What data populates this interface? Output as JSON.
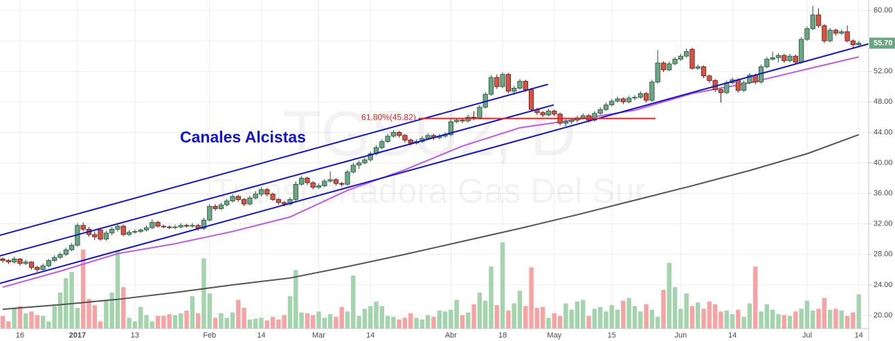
{
  "chart_data": {
    "type": "candlestick",
    "watermark": {
      "symbol": "TGSU2, D",
      "name": "Transportadora Gas Del Sur"
    },
    "annotation": "Canales Alcistas",
    "ylim": [
      16.64,
      61.36
    ],
    "yticks": [
      {
        "value": 20,
        "label": "20.00"
      },
      {
        "value": 24,
        "label": "24.00"
      },
      {
        "value": 28,
        "label": "28.00"
      },
      {
        "value": 32,
        "label": "32.00"
      },
      {
        "value": 36,
        "label": "36.00"
      },
      {
        "value": 40,
        "label": "40.00"
      },
      {
        "value": 44,
        "label": "44.00"
      },
      {
        "value": 48,
        "label": "48.00"
      },
      {
        "value": 52,
        "label": "52.00"
      },
      {
        "value": 56,
        "label": "56.00"
      },
      {
        "value": 60,
        "label": "60.00"
      }
    ],
    "xticks": [
      {
        "value": 3,
        "label": "16"
      },
      {
        "value": 13,
        "label": "2017",
        "bold": true
      },
      {
        "value": 23,
        "label": "13"
      },
      {
        "value": 36,
        "label": "Feb"
      },
      {
        "value": 45,
        "label": "14"
      },
      {
        "value": 55,
        "label": "Mar"
      },
      {
        "value": 64,
        "label": "14"
      },
      {
        "value": 78,
        "label": "Abr"
      },
      {
        "value": 87,
        "label": "18"
      },
      {
        "value": 96,
        "label": "May"
      },
      {
        "value": 106,
        "label": "15"
      },
      {
        "value": 118,
        "label": "Jun"
      },
      {
        "value": 127,
        "label": "14"
      },
      {
        "value": 140,
        "label": "Jul"
      },
      {
        "value": 149,
        "label": "14"
      }
    ],
    "grid": true,
    "colors": {
      "up": "#6ba583",
      "up_border": "#225437",
      "down": "#d75442",
      "down_border": "#5b1a13",
      "volume_up": "#a3d4ae",
      "volume_down": "#f5a3a3",
      "channel": "#1414d4",
      "fib": "#e82020"
    },
    "ohlc": [
      [
        27.4,
        27.6,
        26.9,
        27.2
      ],
      [
        27.2,
        27.4,
        26.7,
        27.0
      ],
      [
        27.0,
        27.7,
        26.8,
        27.4
      ],
      [
        27.4,
        27.5,
        26.5,
        26.8
      ],
      [
        26.8,
        27.3,
        26.6,
        27.0
      ],
      [
        27.0,
        27.1,
        26.0,
        26.3
      ],
      [
        26.3,
        26.5,
        25.7,
        26.0
      ],
      [
        26.0,
        26.8,
        25.9,
        26.5
      ],
      [
        26.5,
        27.4,
        26.3,
        27.2
      ],
      [
        27.2,
        27.9,
        27.0,
        27.6
      ],
      [
        27.6,
        28.3,
        27.4,
        28.0
      ],
      [
        28.0,
        28.9,
        27.8,
        28.6
      ],
      [
        28.6,
        29.5,
        28.4,
        29.2
      ],
      [
        29.2,
        32.1,
        29.0,
        31.8
      ],
      [
        31.8,
        32.2,
        31.0,
        31.3
      ],
      [
        31.3,
        31.6,
        30.3,
        30.6
      ],
      [
        30.6,
        31.0,
        29.9,
        30.3
      ],
      [
        31.2,
        31.5,
        29.8,
        30.0
      ],
      [
        30.0,
        31.1,
        29.8,
        30.8
      ],
      [
        30.8,
        31.6,
        30.5,
        31.3
      ],
      [
        31.3,
        32.0,
        31.0,
        31.7
      ],
      [
        31.7,
        31.9,
        30.4,
        30.6
      ],
      [
        30.6,
        31.2,
        30.4,
        30.9
      ],
      [
        30.9,
        31.3,
        30.7,
        31.0
      ],
      [
        31.0,
        31.4,
        30.8,
        31.2
      ],
      [
        31.2,
        31.8,
        31.0,
        31.5
      ],
      [
        31.5,
        32.6,
        31.3,
        32.2
      ],
      [
        32.2,
        32.4,
        31.5,
        31.7
      ],
      [
        31.7,
        31.9,
        31.4,
        31.6
      ],
      [
        31.6,
        31.8,
        31.3,
        31.5
      ],
      [
        31.5,
        31.9,
        31.3,
        31.6
      ],
      [
        31.6,
        32.1,
        31.4,
        31.8
      ],
      [
        31.8,
        32.0,
        31.5,
        31.7
      ],
      [
        31.7,
        32.1,
        31.5,
        31.8
      ],
      [
        31.8,
        32.0,
        31.1,
        31.4
      ],
      [
        31.4,
        32.8,
        31.2,
        32.5
      ],
      [
        32.5,
        34.6,
        32.3,
        34.3
      ],
      [
        34.3,
        34.6,
        33.7,
        34.0
      ],
      [
        34.0,
        34.8,
        33.8,
        34.5
      ],
      [
        34.5,
        35.3,
        34.3,
        35.0
      ],
      [
        35.0,
        35.9,
        34.8,
        35.6
      ],
      [
        35.6,
        35.8,
        34.9,
        35.2
      ],
      [
        35.2,
        35.4,
        34.3,
        34.6
      ],
      [
        34.6,
        35.7,
        34.4,
        35.4
      ],
      [
        35.4,
        36.3,
        35.2,
        35.9
      ],
      [
        35.9,
        36.8,
        35.6,
        36.5
      ],
      [
        36.5,
        36.7,
        35.6,
        35.9
      ],
      [
        35.9,
        36.1,
        35.0,
        35.2
      ],
      [
        35.2,
        35.4,
        34.5,
        34.8
      ],
      [
        34.8,
        35.0,
        34.3,
        34.6
      ],
      [
        34.6,
        35.5,
        34.4,
        35.2
      ],
      [
        35.2,
        37.6,
        35.0,
        37.2
      ],
      [
        37.2,
        38.3,
        37.0,
        38.0
      ],
      [
        38.0,
        38.2,
        37.1,
        37.4
      ],
      [
        37.4,
        37.6,
        36.5,
        36.8
      ],
      [
        36.8,
        37.3,
        36.6,
        37.0
      ],
      [
        37.0,
        37.9,
        36.8,
        37.6
      ],
      [
        37.6,
        38.9,
        37.4,
        37.8
      ],
      [
        37.8,
        38.0,
        37.0,
        37.3
      ],
      [
        37.3,
        37.5,
        36.9,
        37.2
      ],
      [
        37.2,
        39.1,
        37.0,
        38.8
      ],
      [
        38.8,
        40.0,
        38.6,
        39.7
      ],
      [
        39.7,
        40.3,
        39.2,
        40.0
      ],
      [
        40.0,
        40.7,
        39.8,
        40.4
      ],
      [
        40.4,
        41.5,
        40.2,
        41.2
      ],
      [
        41.2,
        42.3,
        41.0,
        42.0
      ],
      [
        42.0,
        43.1,
        41.8,
        42.8
      ],
      [
        42.8,
        43.8,
        42.6,
        43.5
      ],
      [
        43.5,
        44.3,
        43.3,
        44.0
      ],
      [
        44.0,
        44.2,
        43.3,
        43.6
      ],
      [
        43.6,
        43.8,
        42.7,
        43.0
      ],
      [
        43.0,
        43.2,
        42.3,
        42.6
      ],
      [
        42.6,
        43.1,
        42.4,
        42.8
      ],
      [
        42.8,
        43.5,
        42.6,
        43.2
      ],
      [
        43.2,
        43.9,
        43.0,
        43.6
      ],
      [
        43.6,
        43.8,
        43.0,
        43.3
      ],
      [
        43.3,
        43.8,
        43.1,
        43.5
      ],
      [
        43.5,
        44.0,
        43.3,
        43.7
      ],
      [
        43.7,
        45.7,
        43.5,
        45.4
      ],
      [
        45.4,
        45.9,
        45.2,
        45.6
      ],
      [
        45.6,
        45.8,
        45.2,
        45.5
      ],
      [
        45.5,
        46.3,
        45.3,
        46.0
      ],
      [
        46.0,
        46.8,
        45.6,
        45.9
      ],
      [
        45.9,
        47.6,
        45.7,
        47.3
      ],
      [
        47.3,
        49.3,
        47.1,
        49.0
      ],
      [
        49.0,
        51.5,
        48.8,
        51.2
      ],
      [
        51.2,
        51.6,
        49.7,
        50.0
      ],
      [
        50.0,
        51.9,
        49.8,
        51.6
      ],
      [
        51.6,
        51.8,
        49.1,
        49.4
      ],
      [
        49.4,
        50.1,
        48.9,
        49.8
      ],
      [
        49.8,
        51.0,
        49.6,
        50.7
      ],
      [
        50.7,
        50.9,
        49.3,
        49.6
      ],
      [
        49.6,
        49.8,
        46.7,
        47.0
      ],
      [
        47.0,
        47.2,
        46.3,
        46.6
      ],
      [
        46.6,
        46.8,
        46.0,
        46.3
      ],
      [
        46.3,
        47.1,
        46.1,
        46.8
      ],
      [
        46.8,
        47.0,
        46.1,
        46.4
      ],
      [
        46.4,
        46.6,
        44.9,
        45.2
      ],
      [
        45.2,
        45.7,
        44.8,
        45.4
      ],
      [
        45.4,
        45.9,
        45.1,
        45.6
      ],
      [
        45.6,
        46.2,
        45.3,
        45.9
      ],
      [
        45.9,
        46.5,
        45.7,
        46.2
      ],
      [
        46.2,
        46.4,
        45.3,
        45.6
      ],
      [
        45.6,
        46.8,
        45.4,
        46.5
      ],
      [
        46.5,
        47.3,
        46.3,
        47.0
      ],
      [
        47.0,
        47.9,
        46.8,
        47.6
      ],
      [
        47.6,
        48.4,
        47.4,
        48.1
      ],
      [
        48.1,
        48.7,
        47.9,
        48.4
      ],
      [
        48.4,
        48.6,
        47.7,
        48.0
      ],
      [
        48.0,
        48.8,
        47.8,
        48.5
      ],
      [
        48.5,
        48.9,
        48.2,
        48.6
      ],
      [
        48.6,
        49.4,
        48.4,
        49.1
      ],
      [
        49.1,
        49.3,
        47.9,
        48.2
      ],
      [
        48.2,
        50.9,
        48.0,
        50.6
      ],
      [
        50.6,
        54.8,
        50.4,
        53.1
      ],
      [
        53.1,
        53.3,
        51.9,
        52.2
      ],
      [
        52.2,
        53.3,
        52.0,
        53.0
      ],
      [
        53.0,
        53.9,
        52.8,
        53.6
      ],
      [
        53.6,
        54.3,
        53.4,
        54.0
      ],
      [
        54.0,
        55.0,
        53.8,
        54.6
      ],
      [
        54.9,
        55.1,
        52.2,
        52.4
      ],
      [
        52.4,
        52.9,
        52.2,
        52.6
      ],
      [
        52.6,
        52.8,
        51.1,
        51.4
      ],
      [
        51.4,
        51.6,
        50.5,
        50.8
      ],
      [
        50.8,
        51.0,
        49.3,
        49.6
      ],
      [
        49.6,
        49.8,
        47.9,
        49.2
      ],
      [
        49.2,
        50.8,
        49.0,
        50.5
      ],
      [
        50.5,
        51.2,
        50.3,
        50.9
      ],
      [
        50.9,
        51.1,
        49.2,
        49.5
      ],
      [
        49.5,
        50.8,
        49.3,
        50.5
      ],
      [
        50.5,
        51.8,
        50.3,
        51.5
      ],
      [
        51.5,
        51.7,
        50.3,
        50.6
      ],
      [
        50.6,
        52.9,
        50.4,
        52.6
      ],
      [
        52.6,
        53.9,
        52.4,
        53.6
      ],
      [
        53.6,
        54.6,
        53.4,
        53.8
      ],
      [
        53.8,
        54.4,
        53.2,
        54.1
      ],
      [
        54.1,
        54.3,
        53.1,
        53.4
      ],
      [
        53.4,
        54.3,
        53.2,
        54.0
      ],
      [
        54.0,
        54.2,
        52.9,
        53.2
      ],
      [
        53.2,
        56.5,
        53.0,
        56.2
      ],
      [
        56.2,
        57.9,
        56.0,
        57.6
      ],
      [
        57.6,
        60.6,
        57.4,
        59.4
      ],
      [
        59.4,
        60.3,
        57.7,
        58.0
      ],
      [
        58.0,
        58.2,
        55.7,
        56.0
      ],
      [
        56.0,
        57.7,
        55.8,
        57.4
      ],
      [
        57.4,
        57.6,
        56.7,
        57.0
      ],
      [
        57.0,
        57.5,
        56.8,
        57.2
      ],
      [
        57.2,
        58.0,
        55.8,
        56.0
      ],
      [
        56.0,
        56.2,
        55.0,
        55.5
      ],
      [
        55.5,
        56.0,
        55.2,
        55.7
      ]
    ],
    "volume": [
      14,
      8,
      22,
      25,
      17,
      19,
      15,
      14,
      8,
      25,
      40,
      56,
      63,
      23,
      88,
      33,
      26,
      8,
      32,
      40,
      87,
      46,
      12,
      8,
      24,
      15,
      8,
      14,
      14,
      16,
      15,
      17,
      20,
      36,
      17,
      78,
      39,
      12,
      17,
      12,
      18,
      32,
      23,
      10,
      11,
      12,
      9,
      13,
      10,
      15,
      36,
      65,
      18,
      17,
      15,
      19,
      12,
      16,
      13,
      24,
      19,
      59,
      14,
      22,
      25,
      30,
      25,
      14,
      13,
      10,
      12,
      17,
      12,
      10,
      15,
      13,
      20,
      19,
      21,
      32,
      15,
      18,
      27,
      40,
      31,
      69,
      26,
      96,
      20,
      28,
      42,
      25,
      68,
      23,
      24,
      12,
      17,
      14,
      28,
      21,
      30,
      32,
      14,
      22,
      24,
      19,
      26,
      21,
      31,
      34,
      25,
      19,
      27,
      21,
      13,
      43,
      73,
      46,
      22,
      39,
      25,
      29,
      22,
      30,
      27,
      19,
      20,
      16,
      21,
      13,
      28,
      69,
      19,
      27,
      21,
      16,
      15,
      14,
      19,
      22,
      31,
      20,
      22,
      34,
      21,
      22,
      20,
      14,
      18,
      38
    ],
    "ma": [
      {
        "color": "#c656e8",
        "x": [
          0,
          10,
          20,
          30,
          40,
          50,
          60,
          70,
          80,
          90,
          100,
          110,
          120,
          130,
          140,
          149
        ],
        "values": [
          23.7,
          25.8,
          28.1,
          29.4,
          31.0,
          32.9,
          36.4,
          39.1,
          42.2,
          44.6,
          45.7,
          46.9,
          49.1,
          50.5,
          52.3,
          53.9
        ]
      },
      {
        "color": "#555555",
        "x": [
          0,
          10,
          20,
          30,
          40,
          50,
          60,
          70,
          80,
          90,
          100,
          110,
          120,
          130,
          140,
          149
        ],
        "values": [
          20.8,
          21.4,
          22.1,
          23.0,
          24.0,
          24.9,
          26.4,
          28.0,
          29.7,
          31.4,
          33.2,
          35.1,
          37.0,
          39.0,
          41.2,
          43.7
        ]
      }
    ],
    "channels": [
      {
        "points": [
          [
            -0.5,
            30.5
          ],
          [
            94.9,
            50.3
          ]
        ]
      },
      {
        "points": [
          [
            -0.5,
            27.8
          ],
          [
            95.9,
            47.6
          ]
        ]
      },
      {
        "points": [
          [
            -0.5,
            24.2
          ],
          [
            150.7,
            55.6
          ]
        ]
      }
    ],
    "fib": {
      "value": 45.82,
      "from": 72.4,
      "to": 113.6,
      "label": "61.80%(45.82)"
    },
    "last": {
      "value": 55.7,
      "label": "55.70"
    }
  }
}
